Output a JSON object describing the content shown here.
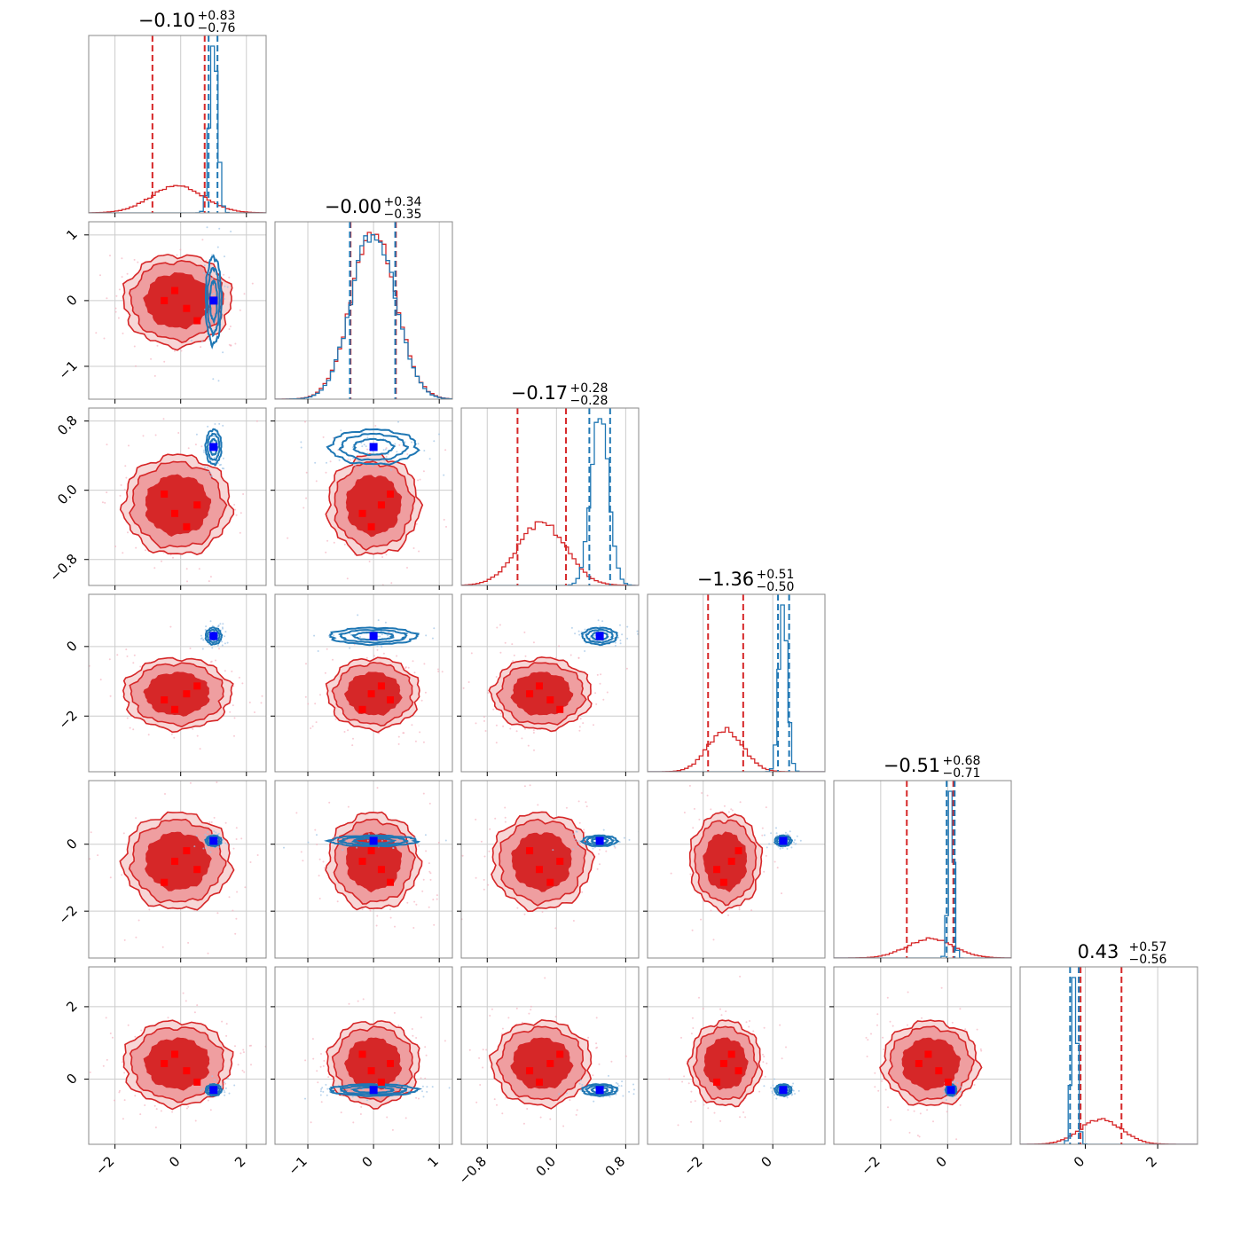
{
  "chart_data": {
    "type": "corner",
    "n_params": 6,
    "series": [
      {
        "color_key": "red",
        "kind": "broad posterior"
      },
      {
        "color_key": "blue",
        "kind": "narrow posterior"
      }
    ],
    "colors": {
      "red": "#d62728",
      "red_fill_mid": "#ef9ea0",
      "red_fill_outer": "#f7d6d6",
      "blue": "#1f77b4",
      "marker_blue": "#0000ff",
      "marker_red": "#ff0000",
      "grid": "#cccccc",
      "frame": "#888888"
    },
    "params": [
      {
        "title_median": "−0.10",
        "title_plus": "+0.83",
        "title_minus": "−0.76",
        "range": [
          -2.8,
          2.6
        ],
        "ticks": [
          -2,
          0,
          2
        ],
        "tick_labels": [
          "−2",
          "0",
          "2"
        ],
        "red": {
          "mean": -0.1,
          "std": 0.8
        },
        "blue": {
          "mean": 1.0,
          "std": 0.12
        },
        "red_q": [
          -0.86,
          0.73
        ],
        "blue_q": [
          0.85,
          1.12
        ]
      },
      {
        "title_median": "−0.00",
        "title_plus": "+0.34",
        "title_minus": "−0.35",
        "range": [
          -1.5,
          1.2
        ],
        "ticks": [
          -1,
          0,
          1
        ],
        "tick_labels": [
          "−1",
          "0",
          "1"
        ],
        "red": {
          "mean": 0.0,
          "std": 0.34
        },
        "blue": {
          "mean": 0.0,
          "std": 0.33
        },
        "red_q": [
          -0.35,
          0.34
        ],
        "blue_q": [
          -0.36,
          0.33
        ]
      },
      {
        "title_median": "−0.17",
        "title_plus": "+0.28",
        "title_minus": "−0.28",
        "range": [
          -1.1,
          0.95
        ],
        "ticks": [
          -0.8,
          0.0,
          0.8
        ],
        "tick_labels": [
          "−0.8",
          "0.0",
          "0.8"
        ],
        "red": {
          "mean": -0.17,
          "std": 0.28
        },
        "blue": {
          "mean": 0.5,
          "std": 0.1
        },
        "red_q": [
          -0.45,
          0.11
        ],
        "blue_q": [
          0.38,
          0.62
        ]
      },
      {
        "title_median": "−1.36",
        "title_plus": "+0.51",
        "title_minus": "−0.50",
        "range": [
          -3.6,
          1.5
        ],
        "ticks": [
          -2,
          0
        ],
        "tick_labels": [
          "−2",
          "0"
        ],
        "red": {
          "mean": -1.36,
          "std": 0.5
        },
        "blue": {
          "mean": 0.3,
          "std": 0.12
        },
        "red_q": [
          -1.86,
          -0.85
        ],
        "blue_q": [
          0.15,
          0.47
        ]
      },
      {
        "title_median": "−0.51",
        "title_plus": "+0.68",
        "title_minus": "−0.71",
        "range": [
          -3.4,
          1.9
        ],
        "ticks": [
          -2,
          0
        ],
        "tick_labels": [
          "−2",
          "0"
        ],
        "red": {
          "mean": -0.51,
          "std": 0.7
        },
        "blue": {
          "mean": 0.1,
          "std": 0.08
        },
        "red_q": [
          -1.22,
          0.17
        ],
        "blue_q": [
          -0.03,
          0.21
        ]
      },
      {
        "title_median": "0.43",
        "title_plus": "+0.57",
        "title_minus": "−0.56",
        "range": [
          -1.8,
          3.1
        ],
        "ticks": [
          0,
          2
        ],
        "tick_labels": [
          "0",
          "2"
        ],
        "red": {
          "mean": 0.43,
          "std": 0.57
        },
        "blue": {
          "mean": -0.3,
          "std": 0.08
        },
        "red_q": [
          -0.13,
          1.0
        ],
        "blue_q": [
          -0.42,
          -0.18
        ]
      }
    ],
    "red_markers_x": [
      -0.5,
      -0.1,
      0.35,
      0.75
    ],
    "red_markers_y": [
      -0.9,
      0.0,
      0.45,
      -0.35
    ],
    "blue_marker": [
      1.0,
      0.0,
      0.5,
      0.3,
      0.1,
      -0.3
    ],
    "grid": true
  }
}
